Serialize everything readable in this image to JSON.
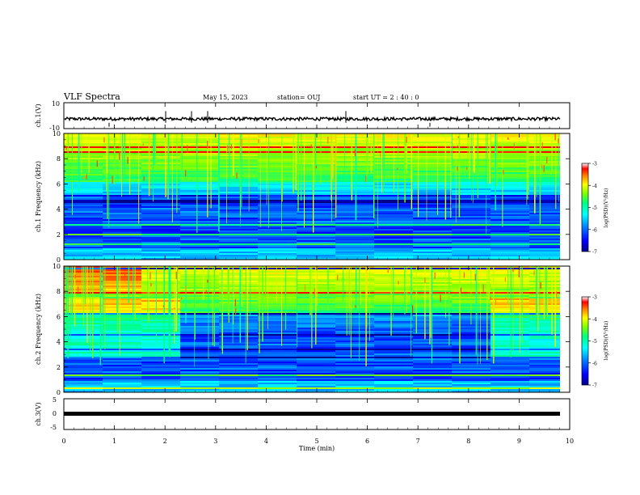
{
  "header": {
    "title": "VLF Spectra",
    "date": "May 15, 2023",
    "station": "station= OUJ",
    "start": "start  UT =   2 : 40 : 0"
  },
  "colorbar": {
    "label": "log(PSD)(V²/Hz)",
    "ticks": [
      "-3",
      "-4",
      "-5",
      "-6",
      "-7"
    ],
    "range": [
      -7,
      -3
    ],
    "colors": [
      "#00008b",
      "#0000ff",
      "#0080ff",
      "#00ffff",
      "#00ff80",
      "#80ff00",
      "#ffff00",
      "#ff8000",
      "#ff0000",
      "#ffffff"
    ]
  },
  "chart_data": [
    {
      "type": "line",
      "panel": "ch1-waveform",
      "ylabel": "ch.1(V)",
      "yticks": [
        "10",
        "-10"
      ],
      "ylim": [
        -10,
        10
      ],
      "xlim": [
        0,
        9.8
      ],
      "series": [
        {
          "values": [
            -2.5,
            -2.5
          ]
        }
      ]
    },
    {
      "type": "heatmap",
      "panel": "ch1-spectrogram",
      "ylabel": "ch.1 Frequency (kHz)",
      "yticks": [
        "0",
        "2",
        "4",
        "6",
        "8",
        "10"
      ],
      "ylim": [
        0,
        10
      ],
      "xlim": [
        0,
        9.8
      ],
      "zlim": [
        -7,
        -3
      ]
    },
    {
      "type": "heatmap",
      "panel": "ch2-spectrogram",
      "ylabel": "ch.2 Frequency (kHz)",
      "yticks": [
        "0",
        "2",
        "4",
        "6",
        "8",
        "10"
      ],
      "ylim": [
        0,
        10
      ],
      "xlim": [
        0,
        9.8
      ],
      "zlim": [
        -7,
        -3
      ]
    },
    {
      "type": "line",
      "panel": "ch3-waveform",
      "ylabel": "ch.3(V)",
      "yticks": [
        "5",
        "0",
        "-5"
      ],
      "ylim": [
        -5,
        5
      ],
      "xlim": [
        0,
        9.8
      ],
      "series": [
        {
          "values": [
            -1.2,
            -1.2
          ]
        }
      ]
    }
  ],
  "xaxis": {
    "label": "Time (min)",
    "ticks": [
      "0",
      "1",
      "2",
      "3",
      "4",
      "5",
      "6",
      "7",
      "8",
      "9",
      "10"
    ],
    "range": [
      0,
      10
    ]
  }
}
